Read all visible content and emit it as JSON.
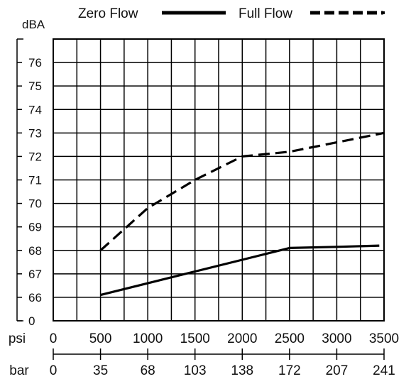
{
  "chart_data": {
    "type": "line",
    "ylabel": "dBA",
    "y_ticks": [
      "0",
      "66",
      "67",
      "68",
      "69",
      "70",
      "71",
      "72",
      "73",
      "74",
      "75",
      "76"
    ],
    "x_axes": {
      "psi": {
        "label": "psi",
        "ticks": [
          "0",
          "500",
          "1000",
          "1500",
          "2000",
          "2500",
          "3000",
          "3500"
        ]
      },
      "bar": {
        "label": "bar",
        "ticks": [
          "0",
          "35",
          "68",
          "103",
          "138",
          "172",
          "207",
          "241"
        ]
      }
    },
    "legend": {
      "placement": "top"
    },
    "grid": true,
    "series": [
      {
        "name": "Zero Flow",
        "style": "solid",
        "x": [
          500,
          1000,
          1500,
          2000,
          2500,
          3000,
          3450
        ],
        "y": [
          66.1,
          66.6,
          67.1,
          67.6,
          68.1,
          68.15,
          68.2
        ]
      },
      {
        "name": "Full Flow",
        "style": "dashed",
        "x": [
          500,
          1000,
          1500,
          2000,
          2500,
          3000,
          3500
        ],
        "y": [
          68.0,
          69.8,
          71.0,
          72.0,
          72.2,
          72.6,
          73.0
        ]
      }
    ]
  }
}
